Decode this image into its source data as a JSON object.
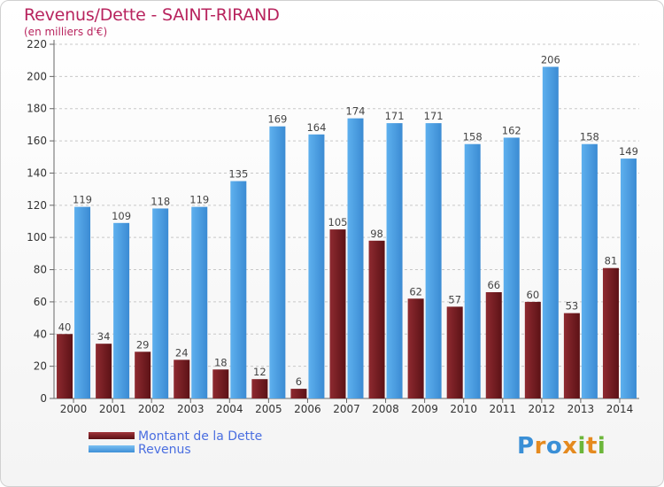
{
  "title": "Revenus/Dette - SAINT-RIRAND",
  "subtitle": "(en milliers d'€)",
  "logo": "Proxiti",
  "chart_data": {
    "type": "bar",
    "categories": [
      "2000",
      "2001",
      "2002",
      "2003",
      "2004",
      "2005",
      "2006",
      "2007",
      "2008",
      "2009",
      "2010",
      "2011",
      "2012",
      "2013",
      "2014"
    ],
    "series": [
      {
        "name": "Montant de la Dette",
        "color": "#7a1f24",
        "values": [
          40,
          34,
          29,
          24,
          18,
          12,
          6,
          105,
          98,
          62,
          57,
          66,
          60,
          53,
          81
        ]
      },
      {
        "name": "Revenus",
        "color": "#4a9fe3",
        "values": [
          119,
          109,
          118,
          119,
          135,
          169,
          164,
          174,
          171,
          171,
          158,
          162,
          206,
          158,
          149
        ]
      }
    ],
    "ylim": [
      0,
      220
    ],
    "yticks": [
      0,
      20,
      40,
      60,
      80,
      100,
      120,
      140,
      160,
      180,
      200,
      220
    ],
    "grid": true,
    "legend": "bottom-left"
  }
}
